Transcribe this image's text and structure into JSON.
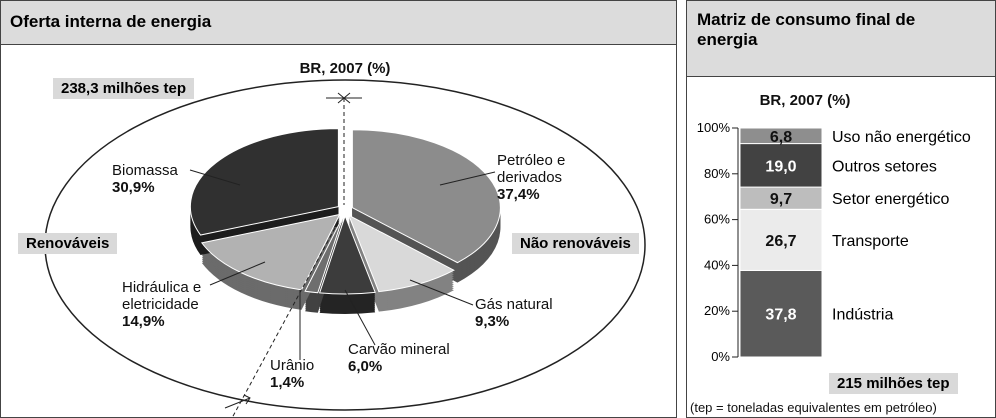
{
  "chart_data": [
    {
      "type": "pie",
      "title": "Oferta interna de energia",
      "subtitle": "BR, 2007 (%)",
      "annotations": [
        "238,3 milhões tep",
        "Renováveis",
        "Não renováveis"
      ],
      "categories": [
        "Petróleo e derivados",
        "Gás natural",
        "Carvão mineral",
        "Urânio",
        "Hidráulica e eletricidade",
        "Biomassa"
      ],
      "values": [
        37.4,
        9.3,
        6.0,
        1.4,
        14.9,
        30.9
      ],
      "value_labels": [
        "37,4%",
        "9,3%",
        "6,0%",
        "1,4%",
        "14,9%",
        "30,9%"
      ],
      "colors": [
        "#8c8c8c",
        "#d9d9d9",
        "#3c3c3c",
        "#6e6e6e",
        "#b2b2b2",
        "#303030"
      ]
    },
    {
      "type": "stacked_bar",
      "title": "Matriz de consumo final de energia",
      "subtitle": "BR, 2007 (%)",
      "annotations": [
        "215 milhões tep",
        "(tep = toneladas equivalentes em petróleo)"
      ],
      "ylim": [
        0,
        100
      ],
      "yticks": [
        {
          "value": 0,
          "label": "0%"
        },
        {
          "value": 20,
          "label": "20%"
        },
        {
          "value": 40,
          "label": "40%"
        },
        {
          "value": 60,
          "label": "60%"
        },
        {
          "value": 80,
          "label": "80%"
        },
        {
          "value": 100,
          "label": "100%"
        }
      ],
      "series": [
        {
          "name": "Indústria",
          "color": "#5a5a5a",
          "values": [
            37.8
          ],
          "value_labels": [
            "37,8"
          ]
        },
        {
          "name": "Transporte",
          "color": "#ebebeb",
          "values": [
            26.7
          ],
          "value_labels": [
            "26,7"
          ]
        },
        {
          "name": "Setor energético",
          "color": "#bdbdbd",
          "values": [
            9.7
          ],
          "value_labels": [
            "9,7"
          ]
        },
        {
          "name": "Outros setores",
          "color": "#424242",
          "values": [
            19.0
          ],
          "value_labels": [
            "19,0"
          ]
        },
        {
          "name": "Uso não energético",
          "color": "#8e8e8e",
          "values": [
            6.8
          ],
          "value_labels": [
            "6,8"
          ]
        }
      ]
    }
  ]
}
